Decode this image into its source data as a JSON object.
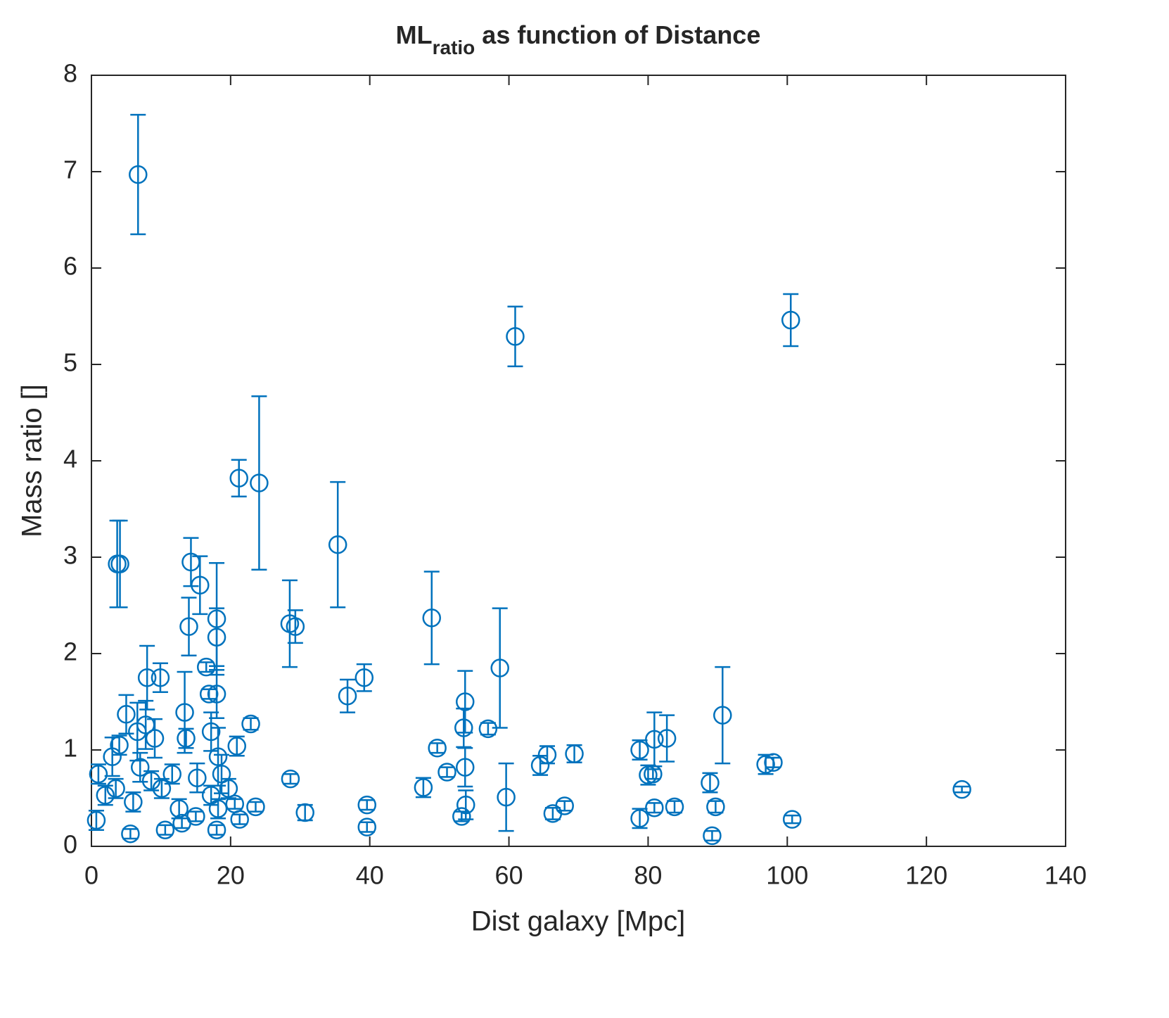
{
  "chart_data": {
    "type": "errorbar",
    "title": {
      "main": "ML",
      "sub": "ratio",
      "rest": "as function of Distance"
    },
    "x_label": "Dist galaxy [Mpc]",
    "y_label": "Mass ratio []",
    "color": "#0072bd",
    "xlim": [
      0,
      140
    ],
    "xticks": [
      0,
      20,
      40,
      60,
      80,
      100,
      120,
      140
    ],
    "ylim": [
      0,
      8
    ],
    "yticks": [
      0,
      1,
      2,
      3,
      4,
      5,
      6,
      7,
      8
    ],
    "x": [
      6.7,
      3.7,
      4.1,
      60.9,
      100.5,
      21.2,
      24.1,
      35.4,
      14.3,
      15.6,
      14.0,
      18.0,
      18.0,
      28.5,
      29.3,
      48.9,
      58.7,
      8.0,
      9.9,
      39.2,
      36.8,
      16.5,
      16.9,
      18.0,
      53.7,
      90.7,
      13.4,
      5.0,
      7.8,
      22.9,
      53.5,
      57.0,
      80.9,
      82.7,
      13.6,
      20.9,
      49.7,
      78.8,
      65.5,
      69.4,
      96.9,
      98.0,
      53.7,
      64.5,
      80.0,
      80.7,
      88.9,
      51.1,
      47.7,
      125.1,
      28.6,
      59.6,
      53.8,
      39.6,
      23.6,
      30.7,
      20.6,
      68.0,
      66.3,
      80.9,
      83.8,
      89.7,
      78.8,
      53.2,
      100.7,
      39.6,
      89.2,
      21.3,
      0.7,
      1.0,
      3.0,
      4.0,
      2.0,
      3.5,
      5.6,
      6.0,
      7.0,
      8.6,
      10.1,
      10.6,
      11.6,
      12.6,
      13.0,
      15.2,
      15.0,
      17.2,
      18.0,
      18.2,
      18.7,
      19.7,
      6.6,
      9.1,
      17.2,
      18.2
    ],
    "values": [
      6.97,
      2.93,
      2.93,
      5.29,
      5.46,
      3.82,
      3.77,
      3.13,
      2.95,
      2.71,
      2.28,
      2.36,
      2.17,
      2.31,
      2.28,
      2.37,
      1.85,
      1.75,
      1.75,
      1.75,
      1.56,
      1.86,
      1.58,
      1.58,
      1.5,
      1.36,
      1.39,
      1.37,
      1.26,
      1.27,
      1.23,
      1.22,
      1.11,
      1.12,
      1.12,
      1.04,
      1.02,
      1.0,
      0.95,
      0.96,
      0.85,
      0.87,
      0.82,
      0.84,
      0.74,
      0.75,
      0.66,
      0.77,
      0.61,
      0.59,
      0.7,
      0.51,
      0.43,
      0.43,
      0.41,
      0.35,
      0.44,
      0.42,
      0.34,
      0.4,
      0.41,
      0.41,
      0.29,
      0.31,
      0.28,
      0.2,
      0.11,
      0.28,
      0.27,
      0.75,
      0.93,
      1.05,
      0.53,
      0.6,
      0.13,
      0.46,
      0.82,
      0.68,
      0.6,
      0.17,
      0.75,
      0.39,
      0.24,
      0.71,
      0.31,
      0.53,
      0.17,
      0.39,
      0.75,
      0.6,
      1.19,
      1.12,
      1.19,
      0.93
    ],
    "errors": [
      0.62,
      0.45,
      0.45,
      0.31,
      0.27,
      0.19,
      0.9,
      0.65,
      0.25,
      0.3,
      0.3,
      0.58,
      0.3,
      0.45,
      0.17,
      0.48,
      0.62,
      0.33,
      0.15,
      0.14,
      0.17,
      0.05,
      0.05,
      0.25,
      0.32,
      0.5,
      0.42,
      0.2,
      0.25,
      0.06,
      0.2,
      0.06,
      0.28,
      0.24,
      0.1,
      0.1,
      0.05,
      0.1,
      0.09,
      0.09,
      0.1,
      0.05,
      0.2,
      0.1,
      0.1,
      0.05,
      0.1,
      0.05,
      0.1,
      0.03,
      0.05,
      0.35,
      0.15,
      0.05,
      0.05,
      0.08,
      0.05,
      0.05,
      0.06,
      0.05,
      0.06,
      0.06,
      0.1,
      0.05,
      0.04,
      0.05,
      0.05,
      0.05,
      0.1,
      0.1,
      0.2,
      0.1,
      0.1,
      0.1,
      0.05,
      0.1,
      0.15,
      0.1,
      0.1,
      0.05,
      0.1,
      0.1,
      0.05,
      0.15,
      0.05,
      0.1,
      0.05,
      0.1,
      0.2,
      0.1,
      0.3,
      0.2,
      0.2,
      0.3
    ]
  }
}
